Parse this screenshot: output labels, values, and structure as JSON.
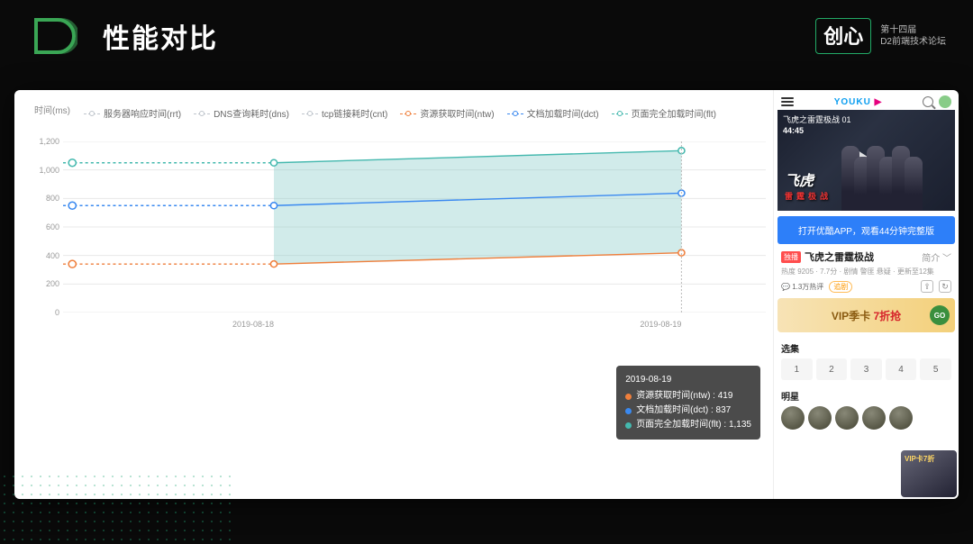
{
  "header": {
    "title": "性能对比",
    "brand_sub1": "第十四届",
    "brand_sub2": "D2前端技术论坛",
    "brand_cx": "创心"
  },
  "chart": {
    "type": "line",
    "y_title": "时间(ms)",
    "ylim": [
      0,
      1200
    ],
    "ytick_step": 200,
    "yticks": [
      0,
      200,
      400,
      600,
      800,
      1000,
      1200
    ],
    "x_categories": [
      "2019-08-18",
      "2019-08-19"
    ],
    "background_color": "#ffffff",
    "grid_color": "#e8e8e8",
    "area_fill_color": "#7ac7c2",
    "area_fill_opacity": 0.35,
    "legend_fontsize": 10,
    "axis_fontsize": 9,
    "line_width": 1.4,
    "marker_style": "circle-open",
    "marker_size": 6,
    "series": [
      {
        "key": "rrt",
        "label": "服务器响应时间(rrt)",
        "color": "#bfc5cc",
        "values": [
          null,
          null
        ]
      },
      {
        "key": "dns",
        "label": "DNS查询耗时(dns)",
        "color": "#bfc5cc",
        "values": [
          null,
          null
        ]
      },
      {
        "key": "cnt",
        "label": "tcp链接耗时(cnt)",
        "color": "#bfc5cc",
        "values": [
          null,
          null
        ]
      },
      {
        "key": "ntw",
        "label": "资源获取时间(ntw)",
        "color": "#ef7f3c",
        "values": [
          340,
          419
        ]
      },
      {
        "key": "dct",
        "label": "文档加载时间(dct)",
        "color": "#3a89f0",
        "values": [
          750,
          837
        ]
      },
      {
        "key": "flt",
        "label": "页面完全加载时间(flt)",
        "color": "#44b8ae",
        "values": [
          1050,
          1135
        ]
      }
    ]
  },
  "tooltip": {
    "date": "2019-08-19",
    "rows": [
      {
        "color": "#ef7f3c",
        "text": "资源获取时间(ntw) : 419"
      },
      {
        "color": "#3a89f0",
        "text": "文档加载时间(dct) : 837"
      },
      {
        "color": "#44b8ae",
        "text": "页面完全加载时间(flt) : 1,135"
      }
    ]
  },
  "mobile": {
    "logo": "YOUKU",
    "video_title": "飞虎之雷霆极战 01",
    "video_time": "44:45",
    "poster_logo": "飞虎",
    "poster_sub": "雷霆极战",
    "open_button": "打开优酷APP，观看44分钟完整版",
    "badge": "独播",
    "title": "飞虎之雷霆极战",
    "dropdown": "简介",
    "heat_line": "热度 9205 · 7.7分 · 剧情 警匪 悬疑 · 更新至12集",
    "fav_count": "1.3万热评",
    "fav_tag": "追剧",
    "vip_text_a": "VIP季卡",
    "vip_text_b": "7折抢",
    "vip_go": "GO",
    "section_ep": "选集",
    "episodes": [
      "1",
      "2",
      "3",
      "4",
      "5"
    ],
    "section_star": "明星",
    "corner_banner": "VIP卡7折"
  }
}
